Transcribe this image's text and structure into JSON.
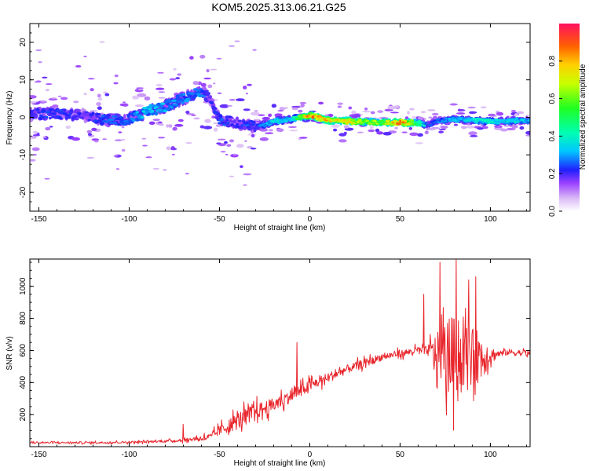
{
  "title": "KOM5.2025.313.06.21.G25",
  "chart_data": [
    {
      "type": "heatmap",
      "xlabel": "Height of straight line (km)",
      "ylabel": "Frequency (Hz)",
      "xlim": [
        -155,
        122
      ],
      "ylim": [
        -25,
        25
      ],
      "xticks": [
        -150,
        -100,
        -50,
        0,
        50,
        100
      ],
      "yticks": [
        -20,
        -10,
        0,
        10,
        20
      ],
      "colorbar": {
        "label": "Normalized spectral amplitude",
        "range": [
          0,
          1
        ],
        "ticks": [
          0.0,
          0.2,
          0.4,
          0.6,
          0.8
        ]
      },
      "ridge": {
        "x": [
          -155,
          -140,
          -125,
          -110,
          -100,
          -90,
          -80,
          -70,
          -60,
          -55,
          -50,
          -45,
          -40,
          -35,
          -30,
          -25,
          -20,
          -10,
          0,
          10,
          20,
          30,
          40,
          50,
          60,
          66,
          70,
          75,
          80,
          90,
          100,
          110,
          122
        ],
        "freq": [
          0.8,
          1.0,
          0.5,
          -1.0,
          -0.5,
          1.5,
          3.0,
          5.0,
          7.0,
          5.0,
          -0.5,
          -1.0,
          -1.5,
          -2.0,
          -2.5,
          -2.0,
          -1.0,
          -0.5,
          0.5,
          -0.8,
          -1.0,
          -1.2,
          -1.3,
          -1.4,
          -1.5,
          -2.0,
          -1.0,
          -0.8,
          -0.5,
          -0.8,
          -1.0,
          -1.0,
          -0.8
        ],
        "amplitude": [
          0.22,
          0.24,
          0.2,
          0.26,
          0.28,
          0.34,
          0.3,
          0.28,
          0.3,
          0.2,
          0.25,
          0.22,
          0.2,
          0.24,
          0.22,
          0.3,
          0.38,
          0.35,
          0.85,
          0.78,
          0.72,
          0.65,
          0.6,
          0.88,
          0.55,
          0.22,
          0.28,
          0.3,
          0.34,
          0.36,
          0.4,
          0.35,
          0.32
        ]
      },
      "scatter_band": {
        "x_from": -155,
        "x_to": 122,
        "freq_spread": 4
      }
    },
    {
      "type": "line",
      "xlabel": "Height of straight line (km)",
      "ylabel": "SNR (v/v)",
      "xlim": [
        -155,
        122
      ],
      "ylim": [
        0,
        1170
      ],
      "xticks": [
        -150,
        -100,
        -50,
        0,
        50,
        100
      ],
      "yticks": [
        200,
        400,
        600,
        800,
        1000
      ],
      "color": "#e8252b",
      "trend": {
        "x": [
          -155,
          -120,
          -90,
          -70,
          -55,
          -50,
          -40,
          -30,
          -20,
          -10,
          0,
          10,
          20,
          30,
          40,
          50,
          60,
          66,
          70,
          80,
          90,
          100,
          110,
          122
        ],
        "y": [
          25,
          25,
          30,
          40,
          60,
          100,
          160,
          220,
          260,
          320,
          380,
          430,
          480,
          520,
          560,
          580,
          600,
          600,
          580,
          560,
          560,
          570,
          590,
          580
        ]
      },
      "noise": {
        "x": [
          -155,
          -75,
          -60,
          -50,
          -40,
          -25,
          -10,
          0,
          20,
          50,
          65,
          68,
          75,
          78,
          85,
          95,
          100,
          105,
          122
        ],
        "amp": [
          10,
          14,
          30,
          60,
          110,
          90,
          80,
          70,
          55,
          40,
          50,
          180,
          400,
          520,
          380,
          320,
          110,
          40,
          35
        ]
      },
      "peaks": [
        {
          "x": 81,
          "y": 1165
        },
        {
          "x": 72,
          "y": 1150
        },
        {
          "x": 88,
          "y": 1040
        },
        {
          "x": 92,
          "y": 1060
        },
        {
          "x": 63,
          "y": 950
        },
        {
          "x": -7,
          "y": 650
        },
        {
          "x": -70,
          "y": 140
        }
      ]
    }
  ]
}
